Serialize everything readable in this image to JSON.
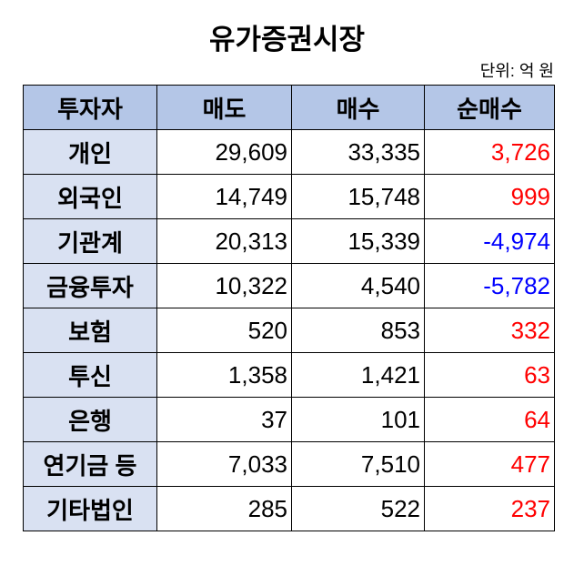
{
  "title": "유가증권시장",
  "unit": "단위: 억 원",
  "colors": {
    "header_bg": "#b4c6e7",
    "name_bg": "#d9e1f2",
    "positive": "#ff0000",
    "negative": "#0000ff"
  },
  "headers": [
    "투자자",
    "매도",
    "매수",
    "순매수"
  ],
  "rows": [
    {
      "investor": "개인",
      "sell": "29,609",
      "buy": "33,335",
      "net": "3,726"
    },
    {
      "investor": "외국인",
      "sell": "14,749",
      "buy": "15,748",
      "net": "999"
    },
    {
      "investor": "기관계",
      "sell": "20,313",
      "buy": "15,339",
      "net": "-4,974"
    },
    {
      "investor": "금융투자",
      "sell": "10,322",
      "buy": "4,540",
      "net": "-5,782"
    },
    {
      "investor": "보험",
      "sell": "520",
      "buy": "853",
      "net": "332"
    },
    {
      "investor": "투신",
      "sell": "1,358",
      "buy": "1,421",
      "net": "63"
    },
    {
      "investor": "은행",
      "sell": "37",
      "buy": "101",
      "net": "64"
    },
    {
      "investor": "연기금 등",
      "sell": "7,033",
      "buy": "7,510",
      "net": "477"
    },
    {
      "investor": "기타법인",
      "sell": "285",
      "buy": "522",
      "net": "237"
    }
  ]
}
